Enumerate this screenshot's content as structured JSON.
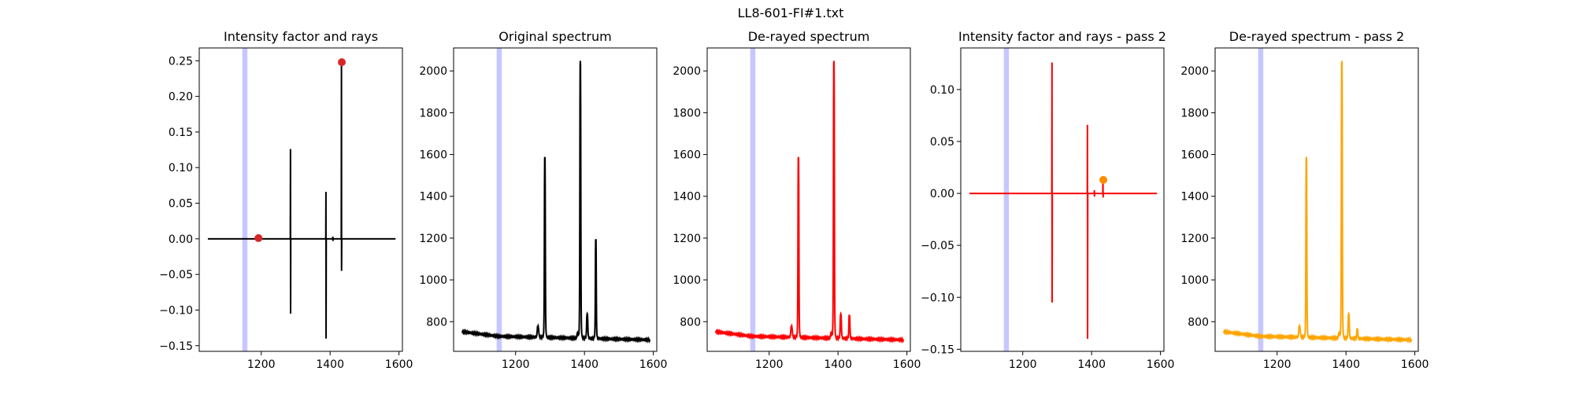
{
  "figure": {
    "suptitle": "LL8-601-FI#1.txt",
    "highlight_color": "#0000ff",
    "highlight_range": [
      1145,
      1160
    ]
  },
  "chart_data": [
    {
      "type": "line",
      "title": "Intensity factor and rays",
      "color": "#000000",
      "marker_color": "#d62728",
      "xlim": [
        1020,
        1610
      ],
      "ylim": [
        -0.158,
        0.268
      ],
      "xticks": [
        1200,
        1400,
        1600
      ],
      "yticks": [
        -0.15,
        -0.1,
        -0.05,
        0.0,
        0.05,
        0.1,
        0.15,
        0.2,
        0.25
      ],
      "ytick_labels": [
        "−0.15",
        "−0.10",
        "−0.05",
        "0.00",
        "0.05",
        "0.10",
        "0.15",
        "0.20",
        "0.25"
      ],
      "baseline": 0.0,
      "x_start": 1045,
      "x_end": 1590,
      "spikes": [
        {
          "x": 1285,
          "up": 0.126,
          "down": -0.105
        },
        {
          "x": 1388,
          "up": 0.066,
          "down": -0.14
        },
        {
          "x": 1408,
          "up": 0.003,
          "down": -0.003
        },
        {
          "x": 1433,
          "up": 0.248,
          "down": -0.045
        }
      ],
      "markers": [
        {
          "x": 1192,
          "y": 0.001
        },
        {
          "x": 1434,
          "y": 0.248
        }
      ]
    },
    {
      "type": "line",
      "title": "Original spectrum",
      "color": "#000000",
      "xlim": [
        1020,
        1610
      ],
      "ylim": [
        658,
        2110
      ],
      "xticks": [
        1200,
        1400,
        1600
      ],
      "yticks": [
        800,
        1000,
        1200,
        1400,
        1600,
        1800,
        2000
      ],
      "ytick_labels": [
        "800",
        "1000",
        "1200",
        "1400",
        "1600",
        "1800",
        "2000"
      ],
      "x_start": 1045,
      "x_end": 1590,
      "baseline_start": 752,
      "baseline_mid_x": 1150,
      "baseline_mid": 730,
      "baseline_end": 713,
      "peaks": [
        {
          "x": 1265,
          "height": 778,
          "width": 2.5
        },
        {
          "x": 1285,
          "height": 1590,
          "width": 1.5
        },
        {
          "x": 1380,
          "height": 745,
          "width": 2.0
        },
        {
          "x": 1388,
          "height": 2045,
          "width": 1.5
        },
        {
          "x": 1408,
          "height": 835,
          "width": 2.0
        },
        {
          "x": 1433,
          "height": 1195,
          "width": 1.5
        }
      ]
    },
    {
      "type": "line",
      "title": "De-rayed spectrum",
      "color": "#ff0000",
      "xlim": [
        1020,
        1610
      ],
      "ylim": [
        658,
        2110
      ],
      "xticks": [
        1200,
        1400,
        1600
      ],
      "yticks": [
        800,
        1000,
        1200,
        1400,
        1600,
        1800,
        2000
      ],
      "ytick_labels": [
        "800",
        "1000",
        "1200",
        "1400",
        "1600",
        "1800",
        "2000"
      ],
      "x_start": 1045,
      "x_end": 1590,
      "baseline_start": 752,
      "baseline_mid_x": 1150,
      "baseline_mid": 730,
      "baseline_end": 713,
      "peaks": [
        {
          "x": 1265,
          "height": 778,
          "width": 2.5
        },
        {
          "x": 1285,
          "height": 1590,
          "width": 1.5
        },
        {
          "x": 1380,
          "height": 745,
          "width": 2.0
        },
        {
          "x": 1388,
          "height": 2045,
          "width": 1.5
        },
        {
          "x": 1408,
          "height": 835,
          "width": 2.0
        },
        {
          "x": 1433,
          "height": 830,
          "width": 1.8
        }
      ]
    },
    {
      "type": "line",
      "title": "Intensity factor and rays - pass 2",
      "color": "#ff0000",
      "marker_color": "#ff8c00",
      "xlim": [
        1020,
        1610
      ],
      "ylim": [
        -0.152,
        0.14
      ],
      "xticks": [
        1200,
        1400,
        1600
      ],
      "yticks": [
        -0.15,
        -0.1,
        -0.05,
        0.0,
        0.05,
        0.1
      ],
      "ytick_labels": [
        "−0.15",
        "−0.10",
        "−0.05",
        "0.00",
        "0.05",
        "0.10"
      ],
      "baseline": 0.0,
      "x_start": 1045,
      "x_end": 1590,
      "spikes": [
        {
          "x": 1285,
          "up": 0.126,
          "down": -0.105
        },
        {
          "x": 1388,
          "up": 0.066,
          "down": -0.14
        },
        {
          "x": 1408,
          "up": 0.003,
          "down": -0.003
        },
        {
          "x": 1433,
          "up": 0.013,
          "down": -0.004
        }
      ],
      "markers": [
        {
          "x": 1434,
          "y": 0.013
        }
      ]
    },
    {
      "type": "line",
      "title": "De-rayed spectrum - pass 2",
      "color": "#ffa500",
      "xlim": [
        1020,
        1610
      ],
      "ylim": [
        658,
        2110
      ],
      "xticks": [
        1200,
        1400,
        1600
      ],
      "yticks": [
        800,
        1000,
        1200,
        1400,
        1600,
        1800,
        2000
      ],
      "ytick_labels": [
        "800",
        "1000",
        "1200",
        "1400",
        "1600",
        "1800",
        "2000"
      ],
      "x_start": 1045,
      "x_end": 1590,
      "baseline_start": 752,
      "baseline_mid_x": 1150,
      "baseline_mid": 730,
      "baseline_end": 713,
      "peaks": [
        {
          "x": 1265,
          "height": 778,
          "width": 2.5
        },
        {
          "x": 1285,
          "height": 1590,
          "width": 1.5
        },
        {
          "x": 1380,
          "height": 745,
          "width": 2.0
        },
        {
          "x": 1388,
          "height": 2045,
          "width": 1.5
        },
        {
          "x": 1408,
          "height": 835,
          "width": 2.0
        },
        {
          "x": 1433,
          "height": 765,
          "width": 1.8
        }
      ]
    }
  ]
}
